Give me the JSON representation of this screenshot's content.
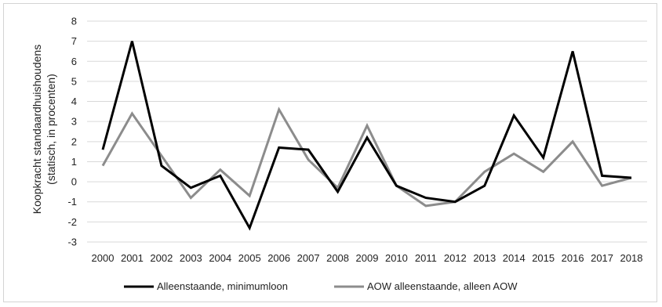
{
  "chart_data": {
    "type": "line",
    "title": "",
    "xlabel": "",
    "ylabel_lines": [
      "Koopkracht standaardhuishoudens",
      "(statisch, in procenten)"
    ],
    "x": [
      "2000",
      "2001",
      "2002",
      "2003",
      "2004",
      "2005",
      "2006",
      "2007",
      "2008",
      "2009",
      "2010",
      "2011",
      "2012",
      "2013",
      "2014",
      "2015",
      "2016",
      "2017",
      "2018"
    ],
    "ylim": [
      -3,
      8
    ],
    "yticks": [
      -3,
      -2,
      -1,
      0,
      1,
      2,
      3,
      4,
      5,
      6,
      7,
      8
    ],
    "grid": true,
    "legend_position": "bottom",
    "series": [
      {
        "name": "Alleenstaande, minimumloon",
        "color": "#000000",
        "values": [
          1.6,
          7.0,
          0.8,
          -0.3,
          0.3,
          -2.3,
          1.7,
          1.6,
          -0.5,
          2.2,
          -0.2,
          -0.8,
          -1.0,
          -0.2,
          3.3,
          1.2,
          6.5,
          0.3,
          0.2
        ]
      },
      {
        "name": "AOW alleenstaande, alleen AOW",
        "color": "#8c8c8c",
        "values": [
          0.8,
          3.4,
          1.3,
          -0.8,
          0.6,
          -0.7,
          3.6,
          1.1,
          -0.3,
          2.8,
          -0.2,
          -1.2,
          -1.0,
          0.5,
          1.4,
          0.5,
          2.0,
          -0.2,
          0.2
        ]
      }
    ]
  }
}
